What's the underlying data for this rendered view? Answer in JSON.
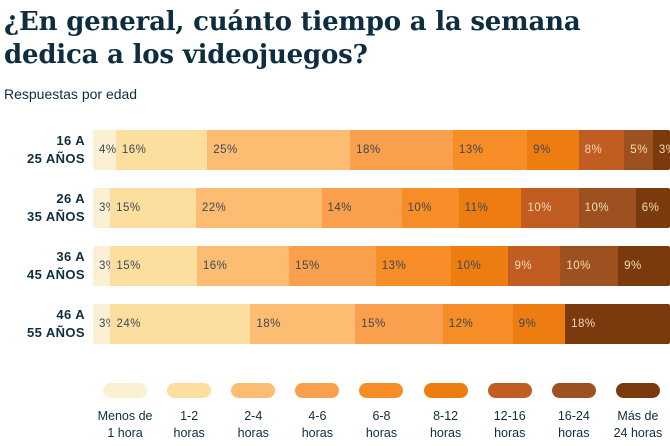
{
  "title_lines": [
    "¿En general, cuánto tiempo a la semana",
    "dedica a los videojuegos?"
  ],
  "subtitle": "Respuestas por edad",
  "colors": {
    "background": "#ffffff",
    "heading": "#0e2e3f",
    "segment_label_dark": "#3c4853",
    "segment_label_light": "#f3ddb2"
  },
  "chart_data": {
    "type": "bar",
    "stacked": true,
    "orientation": "horizontal",
    "unit": "%",
    "title": "¿En general, cuánto tiempo a la semana dedica a los videojuegos?",
    "subtitle": "Respuestas por edad",
    "grid": false,
    "legend_position": "bottom",
    "series": [
      "Menos de 1 hora",
      "1-2 horas",
      "2-4 horas",
      "4-6 horas",
      "6-8 horas",
      "8-12 horas",
      "12-16 horas",
      "16-24 horas",
      "Más de 24 horas"
    ],
    "series_colors": [
      "#fbf0d4",
      "#fcdf9e",
      "#fcbd72",
      "#faa04c",
      "#f78d26",
      "#ee7d11",
      "#c15c22",
      "#9d5120",
      "#7b3a0e"
    ],
    "light_label_from_index": 6,
    "categories": [
      "16 a 25 años",
      "26 a 35 años",
      "36 a 45 años",
      "46 a 55 años"
    ],
    "rows": [
      {
        "label_lines": [
          "16 A",
          "25 AÑOS"
        ],
        "segments": [
          {
            "series_index": 0,
            "value": 4,
            "label": "4%"
          },
          {
            "series_index": 1,
            "value": 16,
            "label": "16%"
          },
          {
            "series_index": 2,
            "value": 25,
            "label": "25%"
          },
          {
            "series_index": 3,
            "value": 18,
            "label": "18%"
          },
          {
            "series_index": 4,
            "value": 13,
            "label": "13%"
          },
          {
            "series_index": 5,
            "value": 9,
            "label": "9%"
          },
          {
            "series_index": 6,
            "value": 8,
            "label": "8%"
          },
          {
            "series_index": 7,
            "value": 5,
            "label": "5%"
          },
          {
            "series_index": 8,
            "value": 3,
            "label": "3%"
          }
        ]
      },
      {
        "label_lines": [
          "26 A",
          "35 AÑOS"
        ],
        "segments": [
          {
            "series_index": 0,
            "value": 3,
            "label": "3%"
          },
          {
            "series_index": 1,
            "value": 15,
            "label": "15%"
          },
          {
            "series_index": 2,
            "value": 22,
            "label": "22%"
          },
          {
            "series_index": 3,
            "value": 14,
            "label": "14%"
          },
          {
            "series_index": 4,
            "value": 10,
            "label": "10%"
          },
          {
            "series_index": 5,
            "value": 11,
            "label": "11%"
          },
          {
            "series_index": 6,
            "value": 10,
            "label": "10%"
          },
          {
            "series_index": 7,
            "value": 10,
            "label": "10%"
          },
          {
            "series_index": 8,
            "value": 6,
            "label": "6%"
          }
        ]
      },
      {
        "label_lines": [
          "36 A",
          "45 AÑOS"
        ],
        "segments": [
          {
            "series_index": 0,
            "value": 3,
            "label": "3%"
          },
          {
            "series_index": 1,
            "value": 15,
            "label": "15%"
          },
          {
            "series_index": 2,
            "value": 16,
            "label": "16%"
          },
          {
            "series_index": 3,
            "value": 15,
            "label": "15%"
          },
          {
            "series_index": 4,
            "value": 13,
            "label": "13%"
          },
          {
            "series_index": 5,
            "value": 10,
            "label": "10%"
          },
          {
            "series_index": 6,
            "value": 9,
            "label": "9%"
          },
          {
            "series_index": 7,
            "value": 10,
            "label": "10%"
          },
          {
            "series_index": 8,
            "value": 9,
            "label": "9%"
          }
        ]
      },
      {
        "label_lines": [
          "46 A",
          "55 AÑOS"
        ],
        "segments": [
          {
            "series_index": 0,
            "value": 3,
            "label": "3%"
          },
          {
            "series_index": 1,
            "value": 24,
            "label": "24%"
          },
          {
            "series_index": 2,
            "value": 18,
            "label": "18%"
          },
          {
            "series_index": 3,
            "value": 15,
            "label": "15%"
          },
          {
            "series_index": 4,
            "value": 12,
            "label": "12%"
          },
          {
            "series_index": 5,
            "value": 9,
            "label": "9%"
          },
          {
            "series_index": 8,
            "value": 18,
            "label": "18%"
          }
        ]
      }
    ],
    "legend_labels": [
      [
        "Menos de",
        "1 hora"
      ],
      [
        "1-2",
        "horas"
      ],
      [
        "2-4",
        "horas"
      ],
      [
        "4-6",
        "horas"
      ],
      [
        "6-8",
        "horas"
      ],
      [
        "8-12",
        "horas"
      ],
      [
        "12-16",
        "horas"
      ],
      [
        "16-24",
        "horas"
      ],
      [
        "Más de",
        "24 horas"
      ]
    ]
  }
}
